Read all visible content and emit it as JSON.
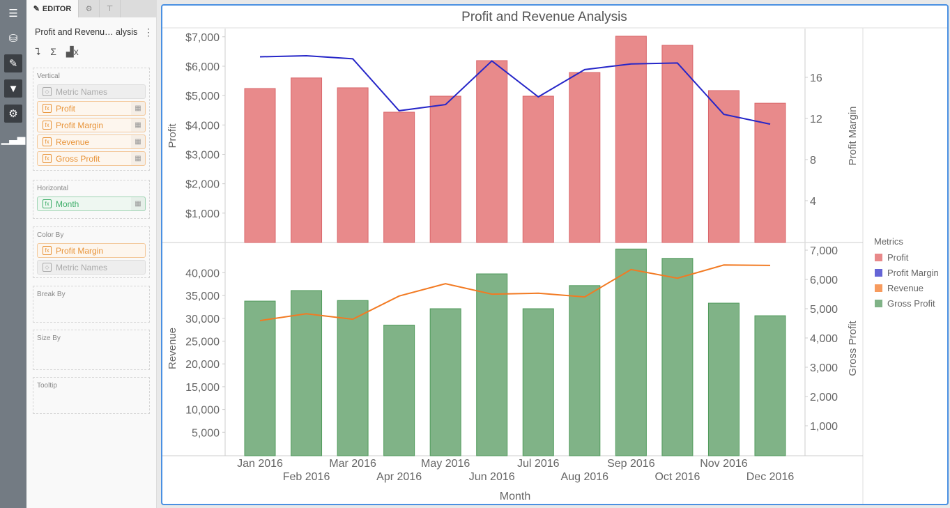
{
  "rail": {
    "items": [
      "list-icon",
      "database-icon",
      "pencil-icon",
      "filter-icon",
      "gear-icon",
      "bar-chart-icon"
    ]
  },
  "panel": {
    "tabs": {
      "editor": "EDITOR"
    },
    "title": "Profit and Revenu… alysis",
    "menu": "⋮",
    "wells": {
      "vertical": {
        "label": "Vertical",
        "items": [
          "Metric Names",
          "Profit",
          "Profit Margin",
          "Revenue",
          "Gross Profit"
        ]
      },
      "horizontal": {
        "label": "Horizontal",
        "items": [
          "Month"
        ]
      },
      "color_by": {
        "label": "Color By",
        "items": [
          "Profit Margin",
          "Metric Names"
        ]
      },
      "break_by": {
        "label": "Break By"
      },
      "size_by": {
        "label": "Size By"
      },
      "tooltip": {
        "label": "Tooltip"
      }
    }
  },
  "chart_data": {
    "type": "bar",
    "title": "Profit and Revenue Analysis",
    "xlabel": "Month",
    "categories": [
      "Jan 2016",
      "Feb 2016",
      "Mar 2016",
      "Apr 2016",
      "May 2016",
      "Jun 2016",
      "Jul 2016",
      "Aug 2016",
      "Sep 2016",
      "Oct 2016",
      "Nov 2016",
      "Dec 2016"
    ],
    "panels": [
      {
        "ylabel_left": "Profit",
        "ylabel_right": "Profit Margin",
        "left_ticks": [
          "$1,000",
          "$2,000",
          "$3,000",
          "$4,000",
          "$5,000",
          "$6,000",
          "$7,000"
        ],
        "left_tick_values": [
          1000,
          2000,
          3000,
          4000,
          5000,
          6000,
          7000
        ],
        "right_ticks": [
          "4",
          "8",
          "12",
          "16"
        ],
        "right_tick_values": [
          4,
          8,
          12,
          16
        ],
        "bars": {
          "name": "Profit",
          "values": [
            5240,
            5600,
            5265,
            4435,
            4980,
            6190,
            4980,
            5785,
            7020,
            6710,
            5170,
            4740
          ]
        },
        "line": {
          "name": "Profit Margin",
          "values": [
            18.0,
            18.1,
            17.8,
            12.75,
            13.35,
            17.6,
            14.1,
            16.75,
            17.3,
            17.4,
            12.4,
            11.45
          ]
        }
      },
      {
        "ylabel_left": "Revenue",
        "ylabel_right": "Gross Profit",
        "left_ticks": [
          "5,000",
          "10,000",
          "15,000",
          "20,000",
          "25,000",
          "30,000",
          "35,000",
          "40,000"
        ],
        "left_tick_values": [
          5000,
          10000,
          15000,
          20000,
          25000,
          30000,
          35000,
          40000
        ],
        "right_ticks": [
          "1,000",
          "2,000",
          "3,000",
          "4,000",
          "5,000",
          "6,000",
          "7,000"
        ],
        "right_tick_values": [
          1000,
          2000,
          3000,
          4000,
          5000,
          6000,
          7000
        ],
        "bars": {
          "name": "Gross Profit",
          "values": [
            5260,
            5620,
            5280,
            4440,
            5000,
            6190,
            5000,
            5790,
            7040,
            6720,
            5190,
            4760
          ]
        },
        "line": {
          "name": "Revenue",
          "values": [
            29500,
            31000,
            29800,
            34900,
            37600,
            35300,
            35500,
            34700,
            40700,
            38800,
            41700,
            41600
          ]
        }
      }
    ],
    "legend": {
      "title": "Metrics",
      "position": "right",
      "entries": [
        {
          "name": "Profit",
          "color": "#e8898a"
        },
        {
          "name": "Profit Margin",
          "color": "#6565d6"
        },
        {
          "name": "Revenue",
          "color": "#f79b5e"
        },
        {
          "name": "Gross Profit",
          "color": "#80b387"
        }
      ]
    },
    "colors": {
      "profit": "#e88a8b",
      "profit_margin": "#2626c8",
      "revenue": "#f27a22",
      "gross_profit": "#80b387"
    }
  }
}
